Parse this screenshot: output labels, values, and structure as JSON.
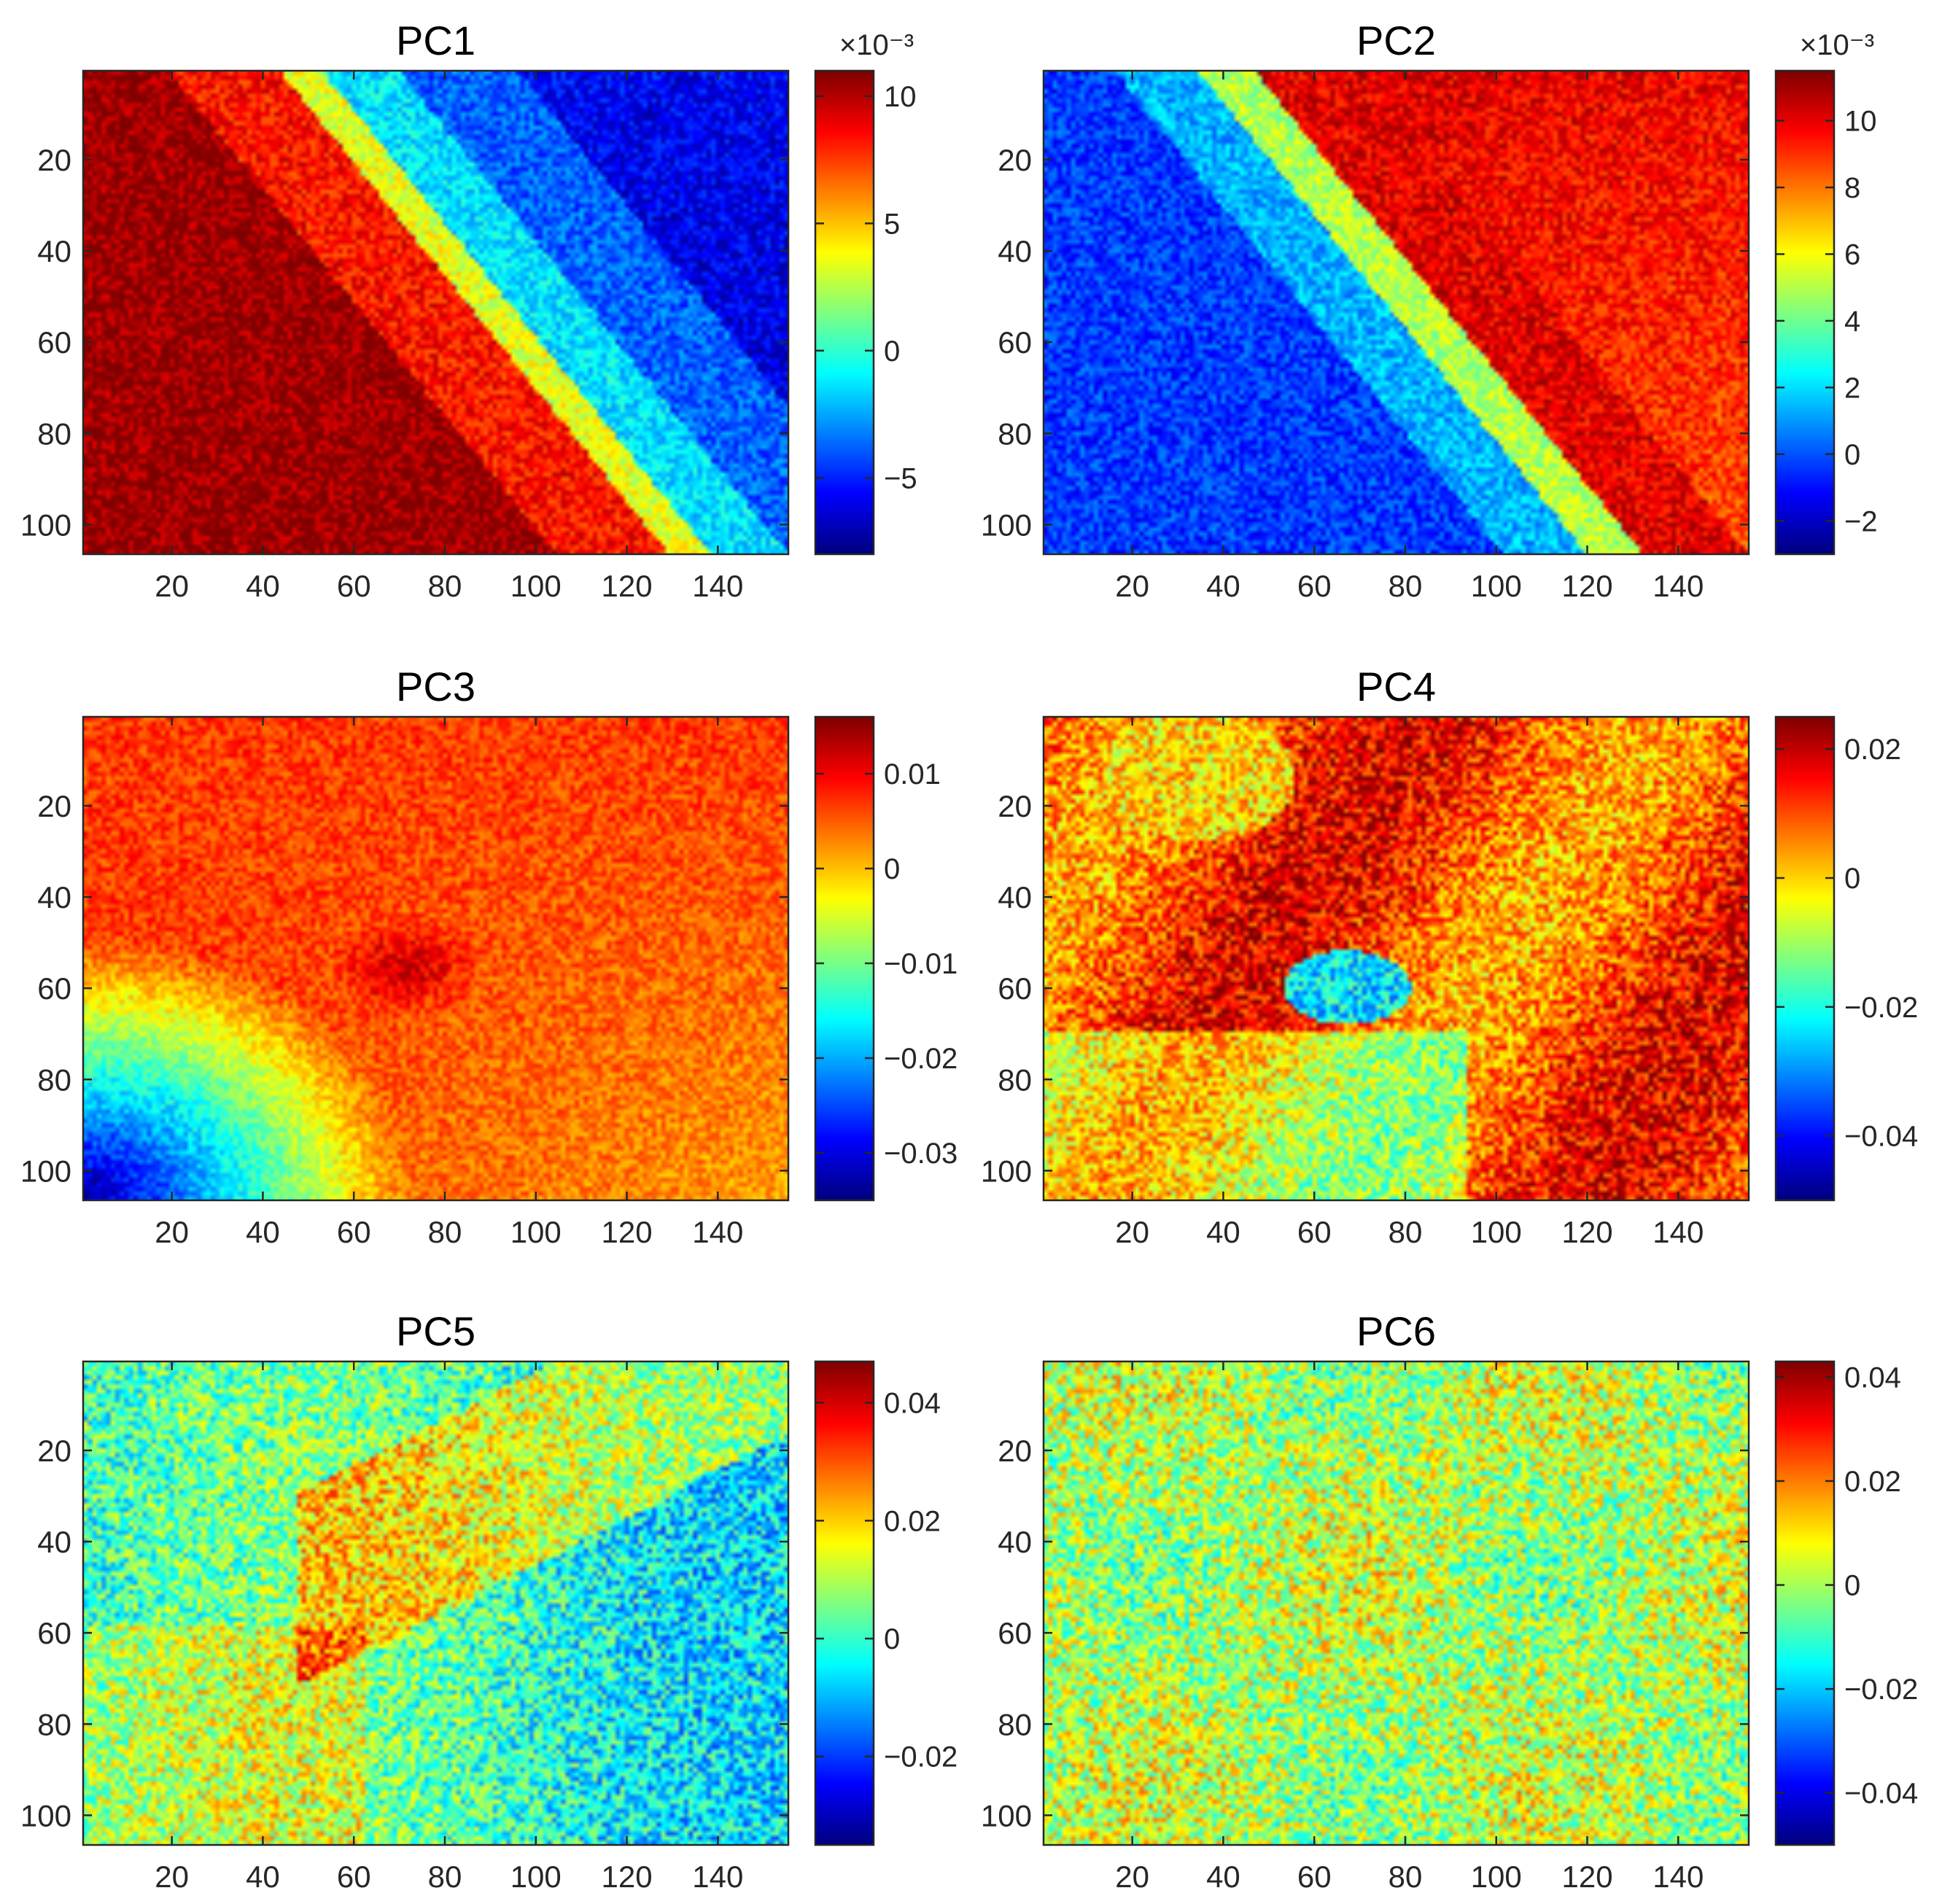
{
  "chart_data": [
    {
      "type": "heatmap",
      "title": "PC1",
      "colormap": "jet",
      "x_range": [
        1,
        155
      ],
      "y_range": [
        1,
        106
      ],
      "y_reversed": true,
      "x_ticks": [
        20,
        40,
        60,
        80,
        100,
        120,
        140
      ],
      "y_ticks": [
        20,
        40,
        60,
        80,
        100
      ],
      "colorbar": {
        "range": [
          -8,
          11
        ],
        "ticks": [
          10,
          5,
          0,
          -5
        ],
        "tick_labels": [
          "10",
          "5",
          "0",
          "−5"
        ],
        "multiplier": "×10⁻³"
      },
      "pattern": {
        "kind": "diagonal",
        "orientation": "high-top-left",
        "noise": 0.08
      }
    },
    {
      "type": "heatmap",
      "title": "PC2",
      "colormap": "jet",
      "x_range": [
        1,
        155
      ],
      "y_range": [
        1,
        106
      ],
      "y_reversed": true,
      "x_ticks": [
        20,
        40,
        60,
        80,
        100,
        120,
        140
      ],
      "y_ticks": [
        20,
        40,
        60,
        80,
        100
      ],
      "colorbar": {
        "range": [
          -3,
          11.5
        ],
        "ticks": [
          10,
          8,
          6,
          4,
          2,
          0,
          -2
        ],
        "tick_labels": [
          "10",
          "8",
          "6",
          "4",
          "2",
          "0",
          "−2"
        ],
        "multiplier": "×10⁻³"
      },
      "pattern": {
        "kind": "diagonal",
        "orientation": "low-top-left",
        "noise": 0.08
      }
    },
    {
      "type": "heatmap",
      "title": "PC3",
      "colormap": "jet",
      "x_range": [
        1,
        155
      ],
      "y_range": [
        1,
        106
      ],
      "y_reversed": true,
      "x_ticks": [
        20,
        40,
        60,
        80,
        100,
        120,
        140
      ],
      "y_ticks": [
        20,
        40,
        60,
        80,
        100
      ],
      "colorbar": {
        "range": [
          -0.035,
          0.016
        ],
        "ticks": [
          0.01,
          0,
          -0.01,
          -0.02,
          -0.03
        ],
        "tick_labels": [
          "0.01",
          "0",
          "−0.01",
          "−0.02",
          "−0.03"
        ],
        "multiplier": ""
      },
      "pattern": {
        "kind": "corner-low",
        "noise": 0.07
      }
    },
    {
      "type": "heatmap",
      "title": "PC4",
      "colormap": "jet",
      "x_range": [
        1,
        155
      ],
      "y_range": [
        1,
        106
      ],
      "y_reversed": true,
      "x_ticks": [
        20,
        40,
        60,
        80,
        100,
        120,
        140
      ],
      "y_ticks": [
        20,
        40,
        60,
        80,
        100
      ],
      "colorbar": {
        "range": [
          -0.05,
          0.025
        ],
        "ticks": [
          0.02,
          0,
          -0.02,
          -0.04
        ],
        "tick_labels": [
          "0.02",
          "0",
          "−0.02",
          "−0.04"
        ],
        "multiplier": ""
      },
      "pattern": {
        "kind": "blob",
        "noise": 0.14
      }
    },
    {
      "type": "heatmap",
      "title": "PC5",
      "colormap": "jet",
      "x_range": [
        1,
        155
      ],
      "y_range": [
        1,
        106
      ],
      "y_reversed": true,
      "x_ticks": [
        20,
        40,
        60,
        80,
        100,
        120,
        140
      ],
      "y_ticks": [
        20,
        40,
        60,
        80,
        100
      ],
      "colorbar": {
        "range": [
          -0.035,
          0.047
        ],
        "ticks": [
          0.04,
          0.02,
          0,
          -0.02
        ],
        "tick_labels": [
          "0.04",
          "0.02",
          "0",
          "−0.02"
        ],
        "multiplier": ""
      },
      "pattern": {
        "kind": "band",
        "noise": 0.16
      }
    },
    {
      "type": "heatmap",
      "title": "PC6",
      "colormap": "jet",
      "x_range": [
        1,
        155
      ],
      "y_range": [
        1,
        106
      ],
      "y_reversed": true,
      "x_ticks": [
        20,
        40,
        60,
        80,
        100,
        120,
        140
      ],
      "y_ticks": [
        20,
        40,
        60,
        80,
        100
      ],
      "colorbar": {
        "range": [
          -0.05,
          0.043
        ],
        "ticks": [
          0.04,
          0.02,
          0,
          -0.02,
          -0.04
        ],
        "tick_labels": [
          "0.04",
          "0.02",
          "0",
          "−0.02",
          "−0.04"
        ],
        "multiplier": ""
      },
      "pattern": {
        "kind": "noise",
        "noise": 0.18
      }
    }
  ]
}
